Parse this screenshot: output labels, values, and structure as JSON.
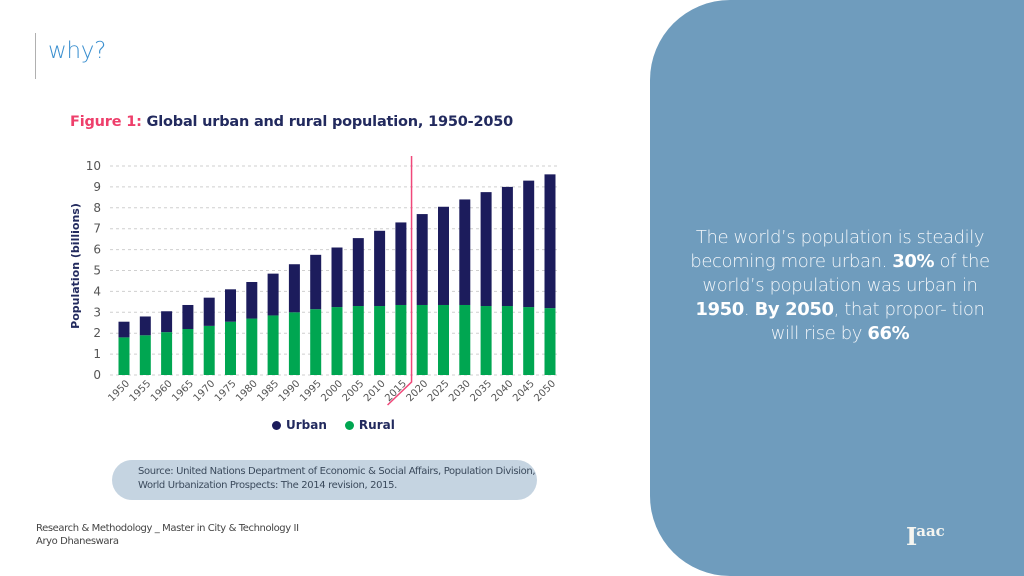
{
  "slide": {
    "title": "why?",
    "footer_line1": "Research & Methodology _ Master in City & Technology II",
    "footer_line2": "Aryo Dhaneswara"
  },
  "figure": {
    "label": "Figure 1:",
    "title": " Global urban and rural population, 1950-2050",
    "source_line1": "Source: United Nations Department of Economic & Social Affairs, Population Division,",
    "source_line2": "World Urbanization Prospects: The 2014 revision, 2015."
  },
  "panel": {
    "t1": "The world’s population is steadily becoming more urban. ",
    "b1": "30%",
    "t2": " of the world’s population was urban in ",
    "b2": "1950",
    "t3": ". ",
    "b3": "By 2050",
    "t4": ", that propor- tion will rise by ",
    "b4": "66%",
    "logo_main": "I",
    "logo_sup": "aac"
  },
  "colors": {
    "urban": "#1c1c5c",
    "rural": "#00a651",
    "divider": "#f0487a",
    "panel": "#6f9cbd",
    "title": "#3a8fcf"
  },
  "chart_data": {
    "type": "bar",
    "stacked": true,
    "title": "Global urban and rural population, 1950-2050",
    "xlabel": "",
    "ylabel": "Population (billions)",
    "ylim": [
      0,
      10
    ],
    "yticks": [
      0,
      1,
      2,
      3,
      4,
      5,
      6,
      7,
      8,
      9,
      10
    ],
    "grid": true,
    "legend_position": "bottom",
    "categories": [
      "1950",
      "1955",
      "1960",
      "1965",
      "1970",
      "1975",
      "1980",
      "1985",
      "1990",
      "1995",
      "2000",
      "2005",
      "2010",
      "2015",
      "2020",
      "2025",
      "2030",
      "2035",
      "2040",
      "2045",
      "2050"
    ],
    "series": [
      {
        "name": "Rural",
        "values": [
          1.8,
          1.9,
          2.05,
          2.2,
          2.35,
          2.55,
          2.7,
          2.85,
          3.0,
          3.15,
          3.25,
          3.3,
          3.3,
          3.35,
          3.35,
          3.35,
          3.35,
          3.3,
          3.3,
          3.25,
          3.2
        ]
      },
      {
        "name": "Urban",
        "values": [
          0.75,
          0.9,
          1.0,
          1.15,
          1.35,
          1.55,
          1.75,
          2.0,
          2.3,
          2.6,
          2.85,
          3.25,
          3.6,
          3.95,
          4.35,
          4.7,
          5.05,
          5.45,
          5.7,
          6.05,
          6.4
        ]
      }
    ],
    "annotations": [
      {
        "type": "vertical-line",
        "between": [
          "2015",
          "2020"
        ],
        "meaning": "projection start"
      }
    ]
  }
}
